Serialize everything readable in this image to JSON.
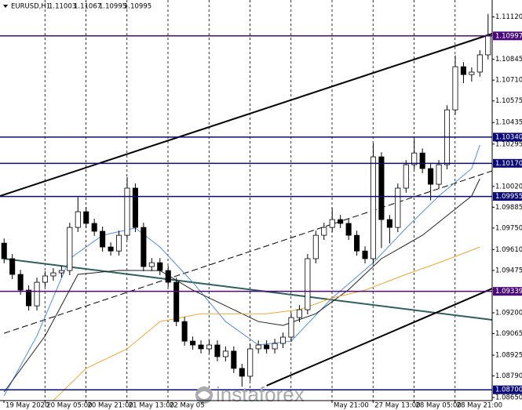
{
  "chart_data": {
    "type": "candlestick",
    "symbol": "EURUSD,H1",
    "quote": [
      1.11003,
      1.11067,
      1.10995,
      1.10995
    ],
    "watermark": "instaforex",
    "ylim": [
      1.0863,
      1.1123
    ],
    "yticks": [
      {
        "value": 1.1112,
        "label": "1.11120"
      },
      1.10845,
      {
        "value": 1.1071,
        "label": "1.10710"
      },
      1.10575,
      1.10435,
      1.10295,
      {
        "value": 1.1002,
        "label": "1.10020"
      },
      1.09885,
      {
        "value": 1.0975,
        "label": "1.09750"
      },
      {
        "value": 1.0961,
        "label": "1.09610"
      },
      1.09475,
      {
        "value": 1.092,
        "label": "1.09200"
      },
      1.09065,
      1.08925,
      {
        "value": 1.0879,
        "label": "1.08790"
      },
      {
        "value": 1.0865,
        "label": "1.08650"
      }
    ],
    "grid": true,
    "up_color": "#ffffff",
    "down_color": "#000000",
    "categories": [
      "19 May 2020",
      null,
      null,
      null,
      null,
      "20 May 05:00",
      null,
      null,
      null,
      null,
      "20 May 21:00",
      null,
      null,
      null,
      null,
      "21 May 13:00",
      null,
      null,
      null,
      null,
      "22 May 05",
      null,
      null,
      null,
      null,
      null,
      null,
      null,
      null,
      null,
      null,
      null,
      null,
      null,
      null,
      null,
      null,
      null,
      null,
      null,
      "May 21:00",
      null,
      null,
      null,
      null,
      "27 May 13:00",
      null,
      null,
      null,
      null,
      "28 May 05:00",
      null,
      null,
      null,
      null,
      "28 May 21:00",
      null,
      null,
      null,
      null
    ],
    "open": [
      1.09652,
      1.09551,
      1.09449,
      1.09347,
      1.09245,
      1.09398,
      1.09439,
      1.09459,
      1.09474,
      1.09754,
      1.09856,
      1.0978,
      1.09729,
      1.09627,
      1.09601,
      1.09703,
      1.10009,
      1.09754,
      1.095,
      1.09525,
      1.09474,
      1.09398,
      1.09143,
      1.09016,
      1.08991,
      1.08966,
      1.08991,
      1.08915,
      1.08951,
      1.08839,
      1.08788,
      1.08966,
      1.08991,
      1.08966,
      1.09001,
      1.09042,
      1.09169,
      1.0922,
      1.09551,
      1.09703,
      1.09754,
      1.09805,
      1.0978,
      1.09703,
      1.09601,
      1.09551,
      1.10212,
      1.09805,
      1.09754,
      1.10009,
      1.10161,
      1.10237,
      1.10136,
      1.10034,
      1.10161,
      1.10517,
      1.10797,
      1.10746,
      1.10762,
      1.10874
    ],
    "high": [
      1.09682,
      1.09581,
      1.09479,
      1.09377,
      1.09428,
      1.09469,
      1.09489,
      1.09504,
      1.09784,
      1.0995,
      1.09886,
      1.0981,
      1.09759,
      1.09657,
      1.09733,
      1.1008,
      1.10039,
      1.09784,
      1.09555,
      1.09555,
      1.09504,
      1.09428,
      1.09173,
      1.09046,
      1.09021,
      1.09021,
      1.09021,
      1.08981,
      1.08981,
      1.08869,
      1.08996,
      1.09021,
      1.09021,
      1.09031,
      1.09072,
      1.09199,
      1.0925,
      1.09581,
      1.09733,
      1.09784,
      1.0988,
      1.09835,
      1.0981,
      1.09733,
      1.09631,
      1.103,
      1.10242,
      1.09835,
      1.10039,
      1.10191,
      1.1033,
      1.10267,
      1.10166,
      1.10191,
      1.10547,
      1.1087,
      1.10827,
      1.10792,
      1.10904,
      1.1114
    ],
    "low": [
      1.09521,
      1.09419,
      1.09317,
      1.09215,
      1.09215,
      1.09368,
      1.09409,
      1.09429,
      1.09444,
      1.09724,
      1.0975,
      1.09699,
      1.09597,
      1.09571,
      1.09571,
      1.09673,
      1.09724,
      1.0947,
      1.0947,
      1.09444,
      1.09368,
      1.09113,
      1.08986,
      1.08961,
      1.08936,
      1.08936,
      1.08885,
      1.08885,
      1.08809,
      1.0872,
      1.08758,
      1.08936,
      1.08936,
      1.08936,
      1.08971,
      1.09012,
      1.09139,
      1.0919,
      1.09521,
      1.09673,
      1.09724,
      1.0975,
      1.09673,
      1.09571,
      1.09521,
      1.09521,
      1.0962,
      1.0965,
      1.09724,
      1.09979,
      1.10131,
      1.10106,
      1.0993,
      1.10004,
      1.10131,
      1.10487,
      1.1069,
      1.107,
      1.10732,
      1.10844
    ],
    "close": [
      1.09551,
      1.09449,
      1.09347,
      1.09245,
      1.09398,
      1.09439,
      1.09459,
      1.09474,
      1.09754,
      1.09856,
      1.0978,
      1.09729,
      1.09627,
      1.09601,
      1.09703,
      1.10009,
      1.09754,
      1.095,
      1.09525,
      1.09474,
      1.09398,
      1.09143,
      1.09016,
      1.08991,
      1.08966,
      1.08991,
      1.08915,
      1.08951,
      1.08839,
      1.08788,
      1.08966,
      1.08991,
      1.08966,
      1.09001,
      1.09042,
      1.09169,
      1.0922,
      1.09551,
      1.09703,
      1.09754,
      1.09805,
      1.0978,
      1.09703,
      1.09601,
      1.09551,
      1.10212,
      1.09805,
      1.09754,
      1.10009,
      1.10161,
      1.10237,
      1.10136,
      1.10034,
      1.10161,
      1.10517,
      1.10797,
      1.10746,
      1.10762,
      1.10874,
      1.11001
    ],
    "levels": [
      {
        "value": 1.10997,
        "color": "#4b0a7a"
      },
      {
        "value": 1.1034,
        "label": "1.10340",
        "color": "#0a0a78"
      },
      {
        "value": 1.1017,
        "label": "1.10170",
        "color": "#0a0a78"
      },
      {
        "value": 1.09955,
        "color": "#0a0a78"
      },
      {
        "value": 1.09339,
        "color": "#4b0a7a"
      },
      {
        "value": 1.087,
        "label": "1.08700",
        "color": "#0a0a78"
      }
    ],
    "overlays": [
      {
        "color": "#000000",
        "width": 2,
        "dash": false,
        "x": [
          -0.5,
          59.5
        ],
        "values": [
          1.09958,
          1.11011
        ]
      },
      {
        "color": "#000000",
        "width": 1,
        "dash": true,
        "x": [
          0,
          59.5
        ],
        "values": [
          1.09067,
          1.10121
        ]
      },
      {
        "color": "#2f5f5f",
        "width": 2,
        "dash": false,
        "x": [
          0,
          59.5
        ],
        "values": [
          1.09551,
          1.09154
        ]
      },
      {
        "color": "#000000",
        "width": 2,
        "dash": false,
        "x": [
          32,
          59.5
        ],
        "values": [
          1.08727,
          1.09357
        ]
      },
      {
        "color": "#4f8fe8",
        "width": 1,
        "dash": false,
        "x": [
          0,
          4,
          8,
          12,
          16,
          19,
          23,
          27,
          31,
          35,
          40,
          45,
          49,
          53,
          57,
          58
        ],
        "values": [
          1.08661,
          1.0905,
          1.09551,
          1.09703,
          1.0975,
          1.09627,
          1.09398,
          1.09143,
          1.08991,
          1.09016,
          1.09296,
          1.09525,
          1.0975,
          1.09958,
          1.10136,
          1.10288
        ]
      },
      {
        "color": "#222222",
        "width": 1,
        "dash": false,
        "x": [
          0,
          5,
          9,
          14,
          19,
          23,
          27,
          31,
          34,
          38,
          42,
          46,
          51,
          57,
          58
        ],
        "values": [
          1.08686,
          1.0905,
          1.09449,
          1.09475,
          1.09474,
          1.09347,
          1.09245,
          1.09143,
          1.09118,
          1.09194,
          1.0935,
          1.09551,
          1.09703,
          1.09958,
          1.1007
        ]
      },
      {
        "color": "#f0a830",
        "width": 1,
        "dash": false,
        "x": [
          6,
          10,
          15,
          19,
          24,
          28,
          32,
          36,
          40,
          44,
          49,
          53,
          58
        ],
        "values": [
          1.0863,
          1.08839,
          1.08966,
          1.09143,
          1.09194,
          1.09194,
          1.09194,
          1.0922,
          1.09296,
          1.09347,
          1.09449,
          1.09525,
          1.09627
        ]
      }
    ]
  }
}
